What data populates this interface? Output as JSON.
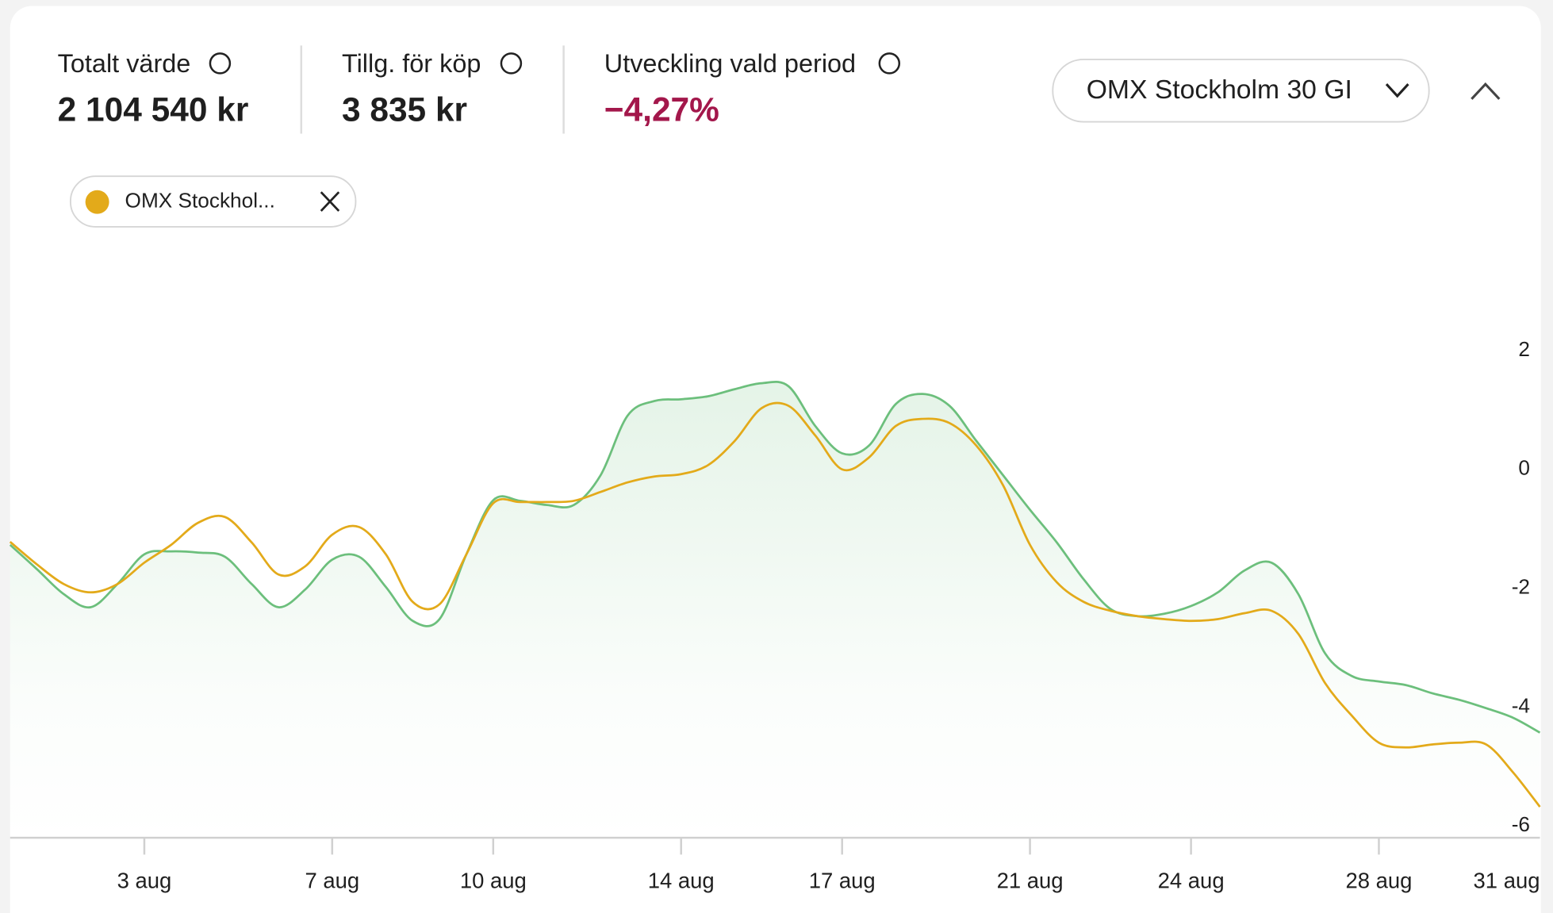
{
  "header": {
    "stats": [
      {
        "label": "Totalt värde",
        "value": "2 104 540 kr"
      },
      {
        "label": "Tillg. för köp",
        "value": "3 835 kr"
      },
      {
        "label": "Utveckling vald period",
        "value": "−4,27%"
      }
    ],
    "dropdown": "OMX Stockholm 30 GI",
    "chip": "OMX Stockhol..."
  },
  "chart_data": {
    "type": "line",
    "categories": [
      null,
      null,
      null,
      null,
      null,
      "3 aug",
      null,
      null,
      null,
      null,
      null,
      null,
      "7 aug",
      null,
      null,
      null,
      null,
      null,
      "10 aug",
      null,
      null,
      null,
      null,
      null,
      null,
      "14 aug",
      null,
      null,
      null,
      null,
      null,
      "17 aug",
      null,
      null,
      null,
      null,
      null,
      null,
      "21 aug",
      null,
      null,
      null,
      null,
      null,
      "24 aug",
      null,
      null,
      null,
      null,
      null,
      null,
      "28 aug",
      null,
      null,
      null,
      null,
      null,
      "31 aug"
    ],
    "series": [
      {
        "color": "#6cbf7c",
        "values": [
          -1.27,
          -1.68,
          -2.1,
          -2.32,
          -1.93,
          -1.43,
          -1.38,
          -1.4,
          -1.47,
          -1.93,
          -2.32,
          -2.02,
          -1.52,
          -1.47,
          -1.98,
          -2.55,
          -2.52,
          -1.43,
          -0.52,
          -0.53,
          -0.6,
          -0.6,
          -0.1,
          0.9,
          1.15,
          1.18,
          1.23,
          1.35,
          1.45,
          1.4,
          0.73,
          0.27,
          0.4,
          1.1,
          1.27,
          1.07,
          0.48,
          -0.1,
          -0.68,
          -1.23,
          -1.85,
          -2.35,
          -2.47,
          -2.43,
          -2.3,
          -2.07,
          -1.7,
          -1.57,
          -2.1,
          -3.1,
          -3.48,
          -3.57,
          -3.63,
          -3.77,
          -3.88,
          -4.02,
          -4.18,
          -4.43
        ]
      },
      {
        "color": "#e3aa1a",
        "values": [
          -1.22,
          -1.6,
          -1.93,
          -2.07,
          -1.93,
          -1.57,
          -1.27,
          -0.9,
          -0.8,
          -1.23,
          -1.77,
          -1.63,
          -1.1,
          -0.97,
          -1.43,
          -2.23,
          -2.27,
          -1.43,
          -0.57,
          -0.55,
          -0.55,
          -0.53,
          -0.38,
          -0.22,
          -0.12,
          -0.08,
          0.07,
          0.48,
          1.03,
          1.07,
          0.57,
          0,
          0.2,
          0.73,
          0.85,
          0.78,
          0.4,
          -0.27,
          -1.27,
          -1.9,
          -2.23,
          -2.38,
          -2.47,
          -2.52,
          -2.55,
          -2.52,
          -2.42,
          -2.38,
          -2.77,
          -3.6,
          -4.15,
          -4.6,
          -4.68,
          -4.63,
          -4.6,
          -4.63,
          -5.1,
          -5.68
        ]
      }
    ],
    "ylim": [
      -6.2,
      3.7
    ],
    "yticks": [
      2,
      0,
      -2,
      -4,
      -6
    ],
    "fill_first": true
  }
}
